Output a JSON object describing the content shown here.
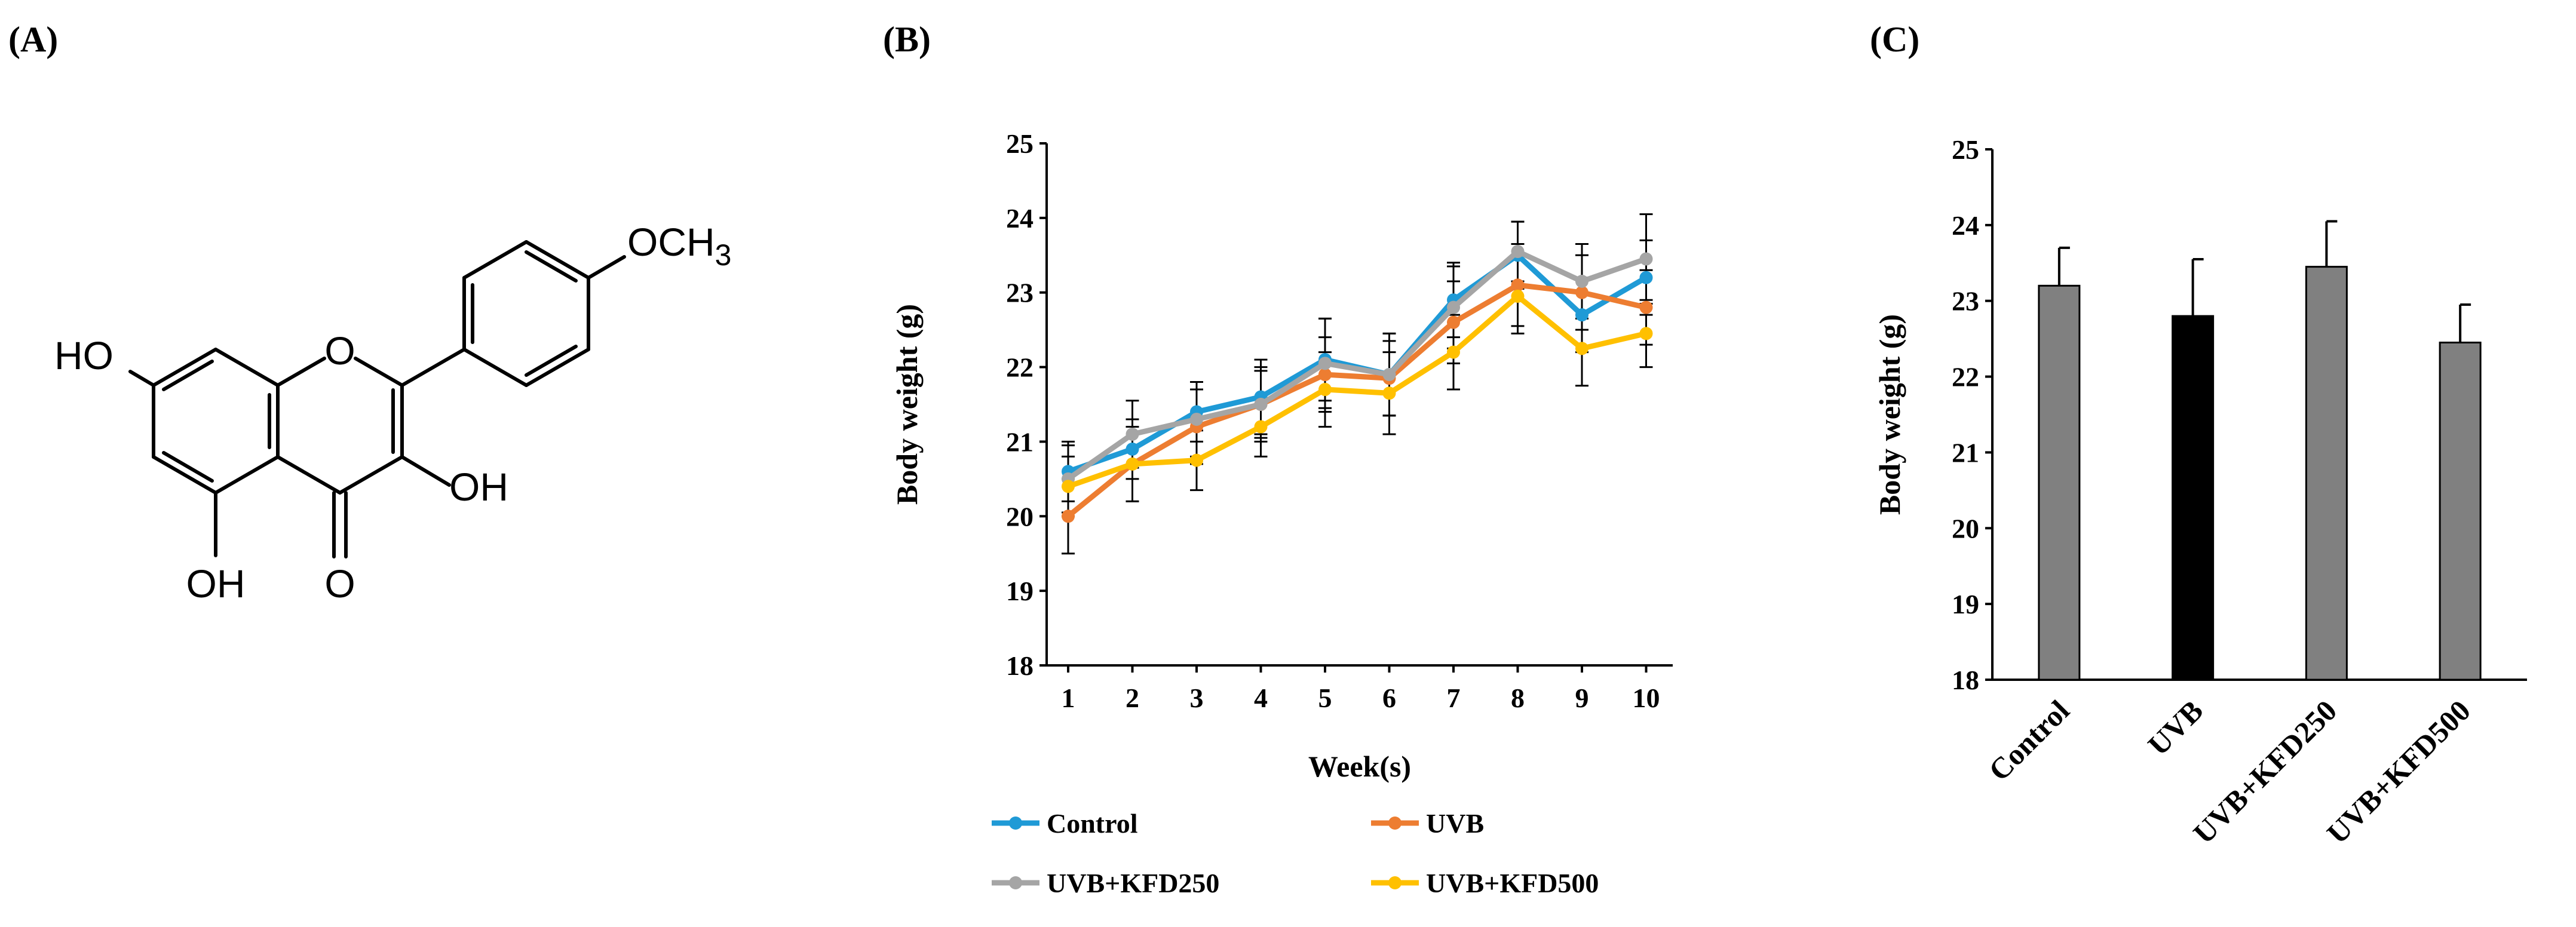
{
  "panels": {
    "a": {
      "label": "(A)"
    },
    "b": {
      "label": "(B)"
    },
    "c": {
      "label": "(C)"
    }
  },
  "structure": {
    "substituents": {
      "ho7": "HO",
      "oh5": "OH",
      "oh3": "OH",
      "carbonyl_o": "O",
      "ring_o": "O",
      "methoxy_o": "OCH",
      "methoxy_sub": "3"
    }
  },
  "chart_data": [
    {
      "type": "line",
      "xlabel": "Week(s)",
      "ylabel": "Body weight  (g)",
      "x": [
        1,
        2,
        3,
        4,
        5,
        6,
        7,
        8,
        9,
        10
      ],
      "ylim": [
        18,
        25
      ],
      "yticks": [
        18,
        19,
        20,
        21,
        22,
        23,
        24,
        25
      ],
      "error_bars": true,
      "legend": "bottom",
      "series": [
        {
          "name": "Control",
          "color": "#1f9ad6",
          "values": [
            20.6,
            20.9,
            21.4,
            21.6,
            22.1,
            21.9,
            22.9,
            23.5,
            22.7,
            23.2
          ],
          "errors": [
            0.4,
            0.4,
            0.4,
            0.5,
            0.55,
            0.55,
            0.5,
            0.45,
            0.5,
            0.5
          ]
        },
        {
          "name": "UVB",
          "color": "#ed7d31",
          "values": [
            20.0,
            20.7,
            21.2,
            21.5,
            21.9,
            21.85,
            22.6,
            23.1,
            23.0,
            22.8
          ],
          "errors": [
            0.5,
            0.5,
            0.5,
            0.45,
            0.5,
            0.5,
            0.55,
            0.55,
            0.5,
            0.5
          ]
        },
        {
          "name": "UVB+KFD250",
          "color": "#a5a5a5",
          "values": [
            20.5,
            21.1,
            21.3,
            21.5,
            22.05,
            21.9,
            22.8,
            23.55,
            23.15,
            23.45
          ],
          "errors": [
            0.45,
            0.45,
            0.5,
            0.5,
            0.6,
            0.55,
            0.55,
            0.4,
            0.5,
            0.6
          ]
        },
        {
          "name": "UVB+KFD500",
          "color": "#ffc000",
          "values": [
            20.4,
            20.7,
            20.75,
            21.2,
            21.7,
            21.65,
            22.2,
            22.95,
            22.25,
            22.45
          ],
          "errors": [
            0.4,
            0.5,
            0.4,
            0.4,
            0.5,
            0.55,
            0.5,
            0.5,
            0.5,
            0.45
          ]
        }
      ]
    },
    {
      "type": "bar",
      "xlabel": "",
      "ylabel": "Body weight (g)",
      "categories": [
        "Control",
        "UVB",
        "UVB+KFD250",
        "UVB+KFD500"
      ],
      "values": [
        23.2,
        22.8,
        23.45,
        22.45
      ],
      "errors": [
        0.5,
        0.75,
        0.6,
        0.5
      ],
      "colors": [
        "#808080",
        "#000000",
        "#808080",
        "#808080"
      ],
      "ylim": [
        18,
        25
      ],
      "yticks": [
        18,
        19,
        20,
        21,
        22,
        23,
        24,
        25
      ]
    }
  ]
}
